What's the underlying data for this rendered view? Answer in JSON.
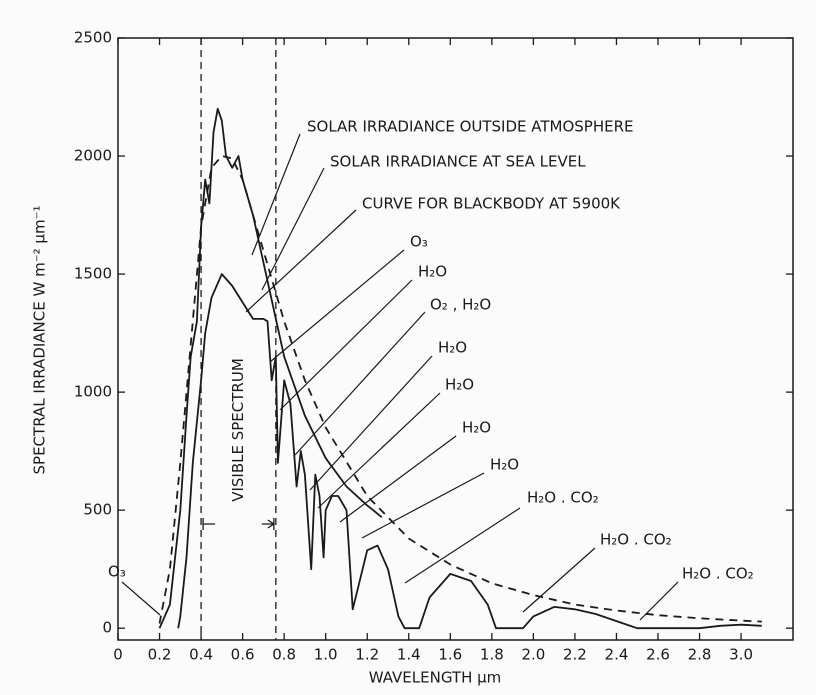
{
  "chart_data": {
    "type": "line",
    "xlabel": "WAVELENGTH μm",
    "ylabel": "SPECTRAL IRRADIANCE W m⁻² μm⁻¹",
    "xlim": [
      0,
      3.25
    ],
    "ylim": [
      -50,
      2500
    ],
    "xticks": [
      0,
      0.2,
      0.4,
      0.6,
      0.8,
      {
        "value": 1,
        "label": "1.0"
      },
      1.2,
      1.4,
      1.6,
      1.8,
      {
        "value": 2,
        "label": "2.0"
      },
      2.2,
      2.4,
      2.6,
      2.8,
      {
        "value": 3,
        "label": "3.0"
      }
    ],
    "yticks": [
      0,
      500,
      1000,
      1500,
      2000,
      2500
    ],
    "series": [
      {
        "name": "SOLAR IRRADIANCE OUTSIDE ATMOSPHERE",
        "color": "#1a1a1a",
        "style": "solid",
        "x": [
          0.2,
          0.25,
          0.3,
          0.33,
          0.35,
          0.38,
          0.4,
          0.42,
          0.44,
          0.46,
          0.48,
          0.5,
          0.52,
          0.55,
          0.58,
          0.6,
          0.65,
          0.7,
          0.75,
          0.8,
          0.9,
          1.0,
          1.1,
          1.2,
          1.27
        ],
        "values": [
          0,
          100,
          500,
          900,
          1150,
          1300,
          1700,
          1900,
          1800,
          2100,
          2200,
          2150,
          2000,
          1950,
          2000,
          1900,
          1750,
          1550,
          1350,
          1150,
          900,
          720,
          600,
          520,
          470
        ]
      },
      {
        "name": "SOLAR IRRADIANCE AT SEA LEVEL",
        "color": "#1a1a1a",
        "style": "solid",
        "x": [
          0.29,
          0.3,
          0.33,
          0.36,
          0.4,
          0.42,
          0.45,
          0.5,
          0.55,
          0.6,
          0.65,
          0.7,
          0.72,
          0.74,
          0.76,
          0.77,
          0.8,
          0.83,
          0.86,
          0.88,
          0.9,
          0.93,
          0.95,
          0.97,
          0.99,
          1.0,
          1.03,
          1.06,
          1.1,
          1.13,
          1.15,
          1.2,
          1.25,
          1.3,
          1.35,
          1.38,
          1.45,
          1.5,
          1.6,
          1.7,
          1.78,
          1.82,
          1.95,
          2.0,
          2.1,
          2.2,
          2.3,
          2.4,
          2.5,
          2.8,
          2.9,
          3.0,
          3.1
        ],
        "values": [
          0,
          50,
          300,
          700,
          1050,
          1250,
          1400,
          1500,
          1450,
          1380,
          1310,
          1310,
          1300,
          1050,
          1150,
          700,
          1050,
          950,
          600,
          750,
          650,
          250,
          650,
          560,
          300,
          500,
          560,
          560,
          500,
          80,
          150,
          330,
          350,
          250,
          50,
          0,
          0,
          130,
          230,
          200,
          100,
          0,
          0,
          50,
          90,
          80,
          60,
          30,
          0,
          0,
          10,
          15,
          10
        ]
      },
      {
        "name": "CURVE FOR BLACKBODY AT 5900K",
        "color": "#1a1a1a",
        "style": "dashed",
        "x": [
          0.2,
          0.25,
          0.3,
          0.35,
          0.4,
          0.45,
          0.5,
          0.55,
          0.6,
          0.7,
          0.8,
          0.9,
          1.0,
          1.2,
          1.4,
          1.6,
          1.8,
          2.0,
          2.2,
          2.4,
          2.6,
          2.8,
          3.0,
          3.1
        ],
        "values": [
          20,
          250,
          700,
          1200,
          1700,
          1950,
          2000,
          1990,
          1900,
          1600,
          1300,
          1050,
          850,
          560,
          380,
          270,
          190,
          140,
          100,
          75,
          55,
          42,
          32,
          28
        ]
      }
    ],
    "annotations": [
      "O₃",
      "H₂O",
      "O₂ , H₂O",
      "H₂O",
      "H₂O",
      "H₂O",
      "H₂O",
      "H₂O . CO₂",
      "H₂O . CO₂",
      "H₂O . CO₂",
      "O₃"
    ],
    "visible_spectrum": {
      "label": "VISIBLE SPECTRUM",
      "range": [
        0.4,
        0.76
      ]
    }
  }
}
